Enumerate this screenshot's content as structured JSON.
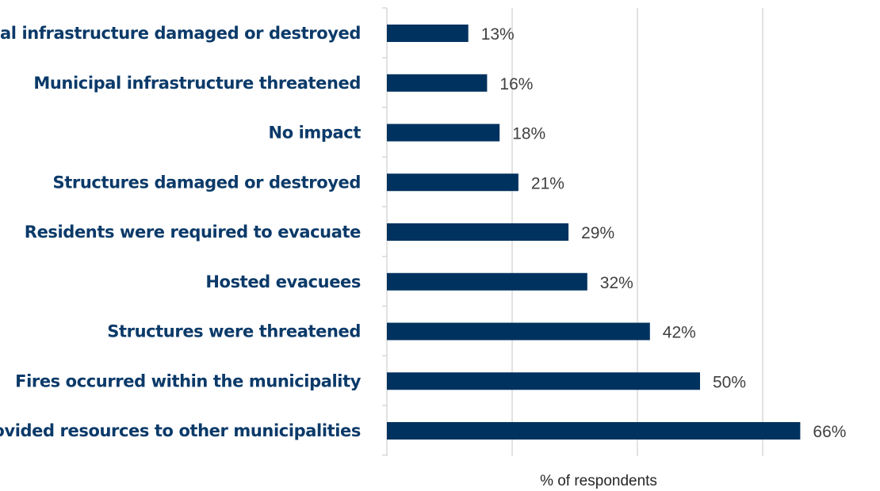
{
  "chart_data": {
    "type": "bar",
    "orientation": "horizontal",
    "categories": [
      "Municipal infrastructure damaged or destroyed",
      "Municipal infrastructure threatened",
      "No impact",
      "Structures damaged or destroyed",
      "Residents were required to evacuate",
      "Hosted evacuees",
      "Structures were threatened",
      "Fires occurred within the municipality",
      "Provided resources to other municipalities"
    ],
    "values": [
      13,
      16,
      18,
      21,
      29,
      32,
      42,
      50,
      66
    ],
    "value_labels": [
      "13%",
      "16%",
      "18%",
      "21%",
      "29%",
      "32%",
      "42%",
      "50%",
      "66%"
    ],
    "xlabel": "% of respondents",
    "ylabel": "",
    "title": "",
    "xlim": [
      0,
      70
    ],
    "grid": "vertical",
    "bar_color": "#00325f"
  }
}
